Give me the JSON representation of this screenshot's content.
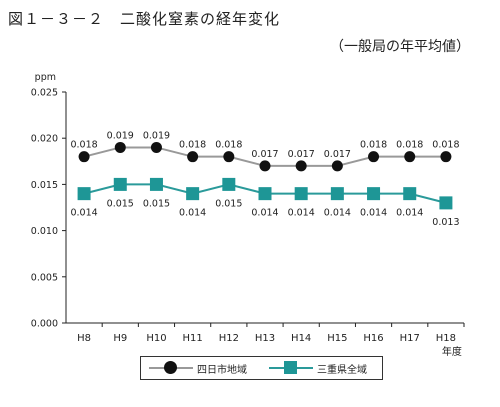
{
  "figure": {
    "title": "図１－３－２　二酸化窒素の経年変化",
    "subtitle": "（一般局の年平均値）"
  },
  "chart_data": {
    "type": "line",
    "title": "",
    "xlabel": "年度",
    "ylabel": "ppm",
    "categories": [
      "H8",
      "H9",
      "H10",
      "H11",
      "H12",
      "H13",
      "H14",
      "H15",
      "H16",
      "H17",
      "H18"
    ],
    "ylim": [
      0.0,
      0.025
    ],
    "yticks": [
      "0.025",
      "0.020",
      "0.015",
      "0.010",
      "0.005",
      "0.000"
    ],
    "grid": false,
    "legend_position": "bottom",
    "series": [
      {
        "name": "四日市地域",
        "marker": "circle",
        "line_color": "#999999",
        "marker_color": "#111111",
        "values": [
          0.018,
          0.019,
          0.019,
          0.018,
          0.018,
          0.017,
          0.017,
          0.017,
          0.018,
          0.018,
          0.018
        ],
        "labels": [
          "0.018",
          "0.019",
          "0.019",
          "0.018",
          "0.018",
          "0.017",
          "0.017",
          "0.017",
          "0.018",
          "0.018",
          "0.018"
        ]
      },
      {
        "name": "三重県全域",
        "marker": "square",
        "line_color": "#2a9a9a",
        "marker_color": "#1e9696",
        "values": [
          0.014,
          0.015,
          0.015,
          0.014,
          0.015,
          0.014,
          0.014,
          0.014,
          0.014,
          0.014,
          0.013
        ],
        "labels": [
          "0.014",
          "0.015",
          "0.015",
          "0.014",
          "0.015",
          "0.014",
          "0.014",
          "0.014",
          "0.014",
          "0.014",
          "0.013"
        ]
      }
    ]
  }
}
